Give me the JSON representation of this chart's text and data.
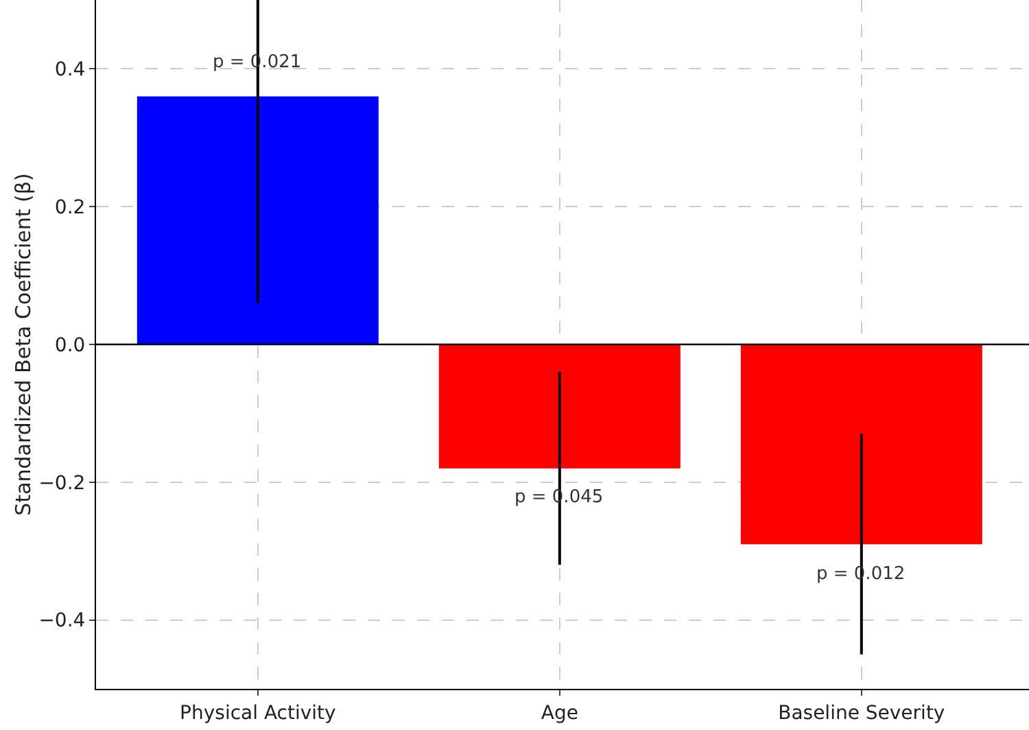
{
  "chart_data": {
    "type": "bar",
    "ylabel": "Standardized Beta Coefficient (β)",
    "categories": [
      "Physical Activity",
      "Age",
      "Baseline Severity"
    ],
    "values": [
      0.36,
      -0.18,
      -0.29
    ],
    "colors": [
      "#0000ff",
      "#ff0000",
      "#ff0000"
    ],
    "errors": [
      [
        0.06,
        0.5
      ],
      [
        -0.32,
        -0.04
      ],
      [
        -0.45,
        -0.13
      ]
    ],
    "ylim": [
      -0.5,
      0.5
    ],
    "yticks": [
      {
        "value": -0.4,
        "label": "−0.4"
      },
      {
        "value": -0.2,
        "label": "−0.2"
      },
      {
        "value": 0,
        "label": "0.0"
      },
      {
        "value": 0.2,
        "label": "0.2"
      },
      {
        "value": 0.4,
        "label": "0.4"
      }
    ],
    "grid": true,
    "legend": false,
    "ref_lines": [
      {
        "axis": "y",
        "value": 0,
        "color": "#000000"
      }
    ],
    "annotations": [
      {
        "text": "p = 0.021",
        "x": "Physical Activity",
        "y": 0.41
      },
      {
        "text": "p = 0.045",
        "x": "Age",
        "y": -0.223
      },
      {
        "text": "p = 0.012",
        "x": "Baseline Severity",
        "y": -0.333
      }
    ]
  }
}
